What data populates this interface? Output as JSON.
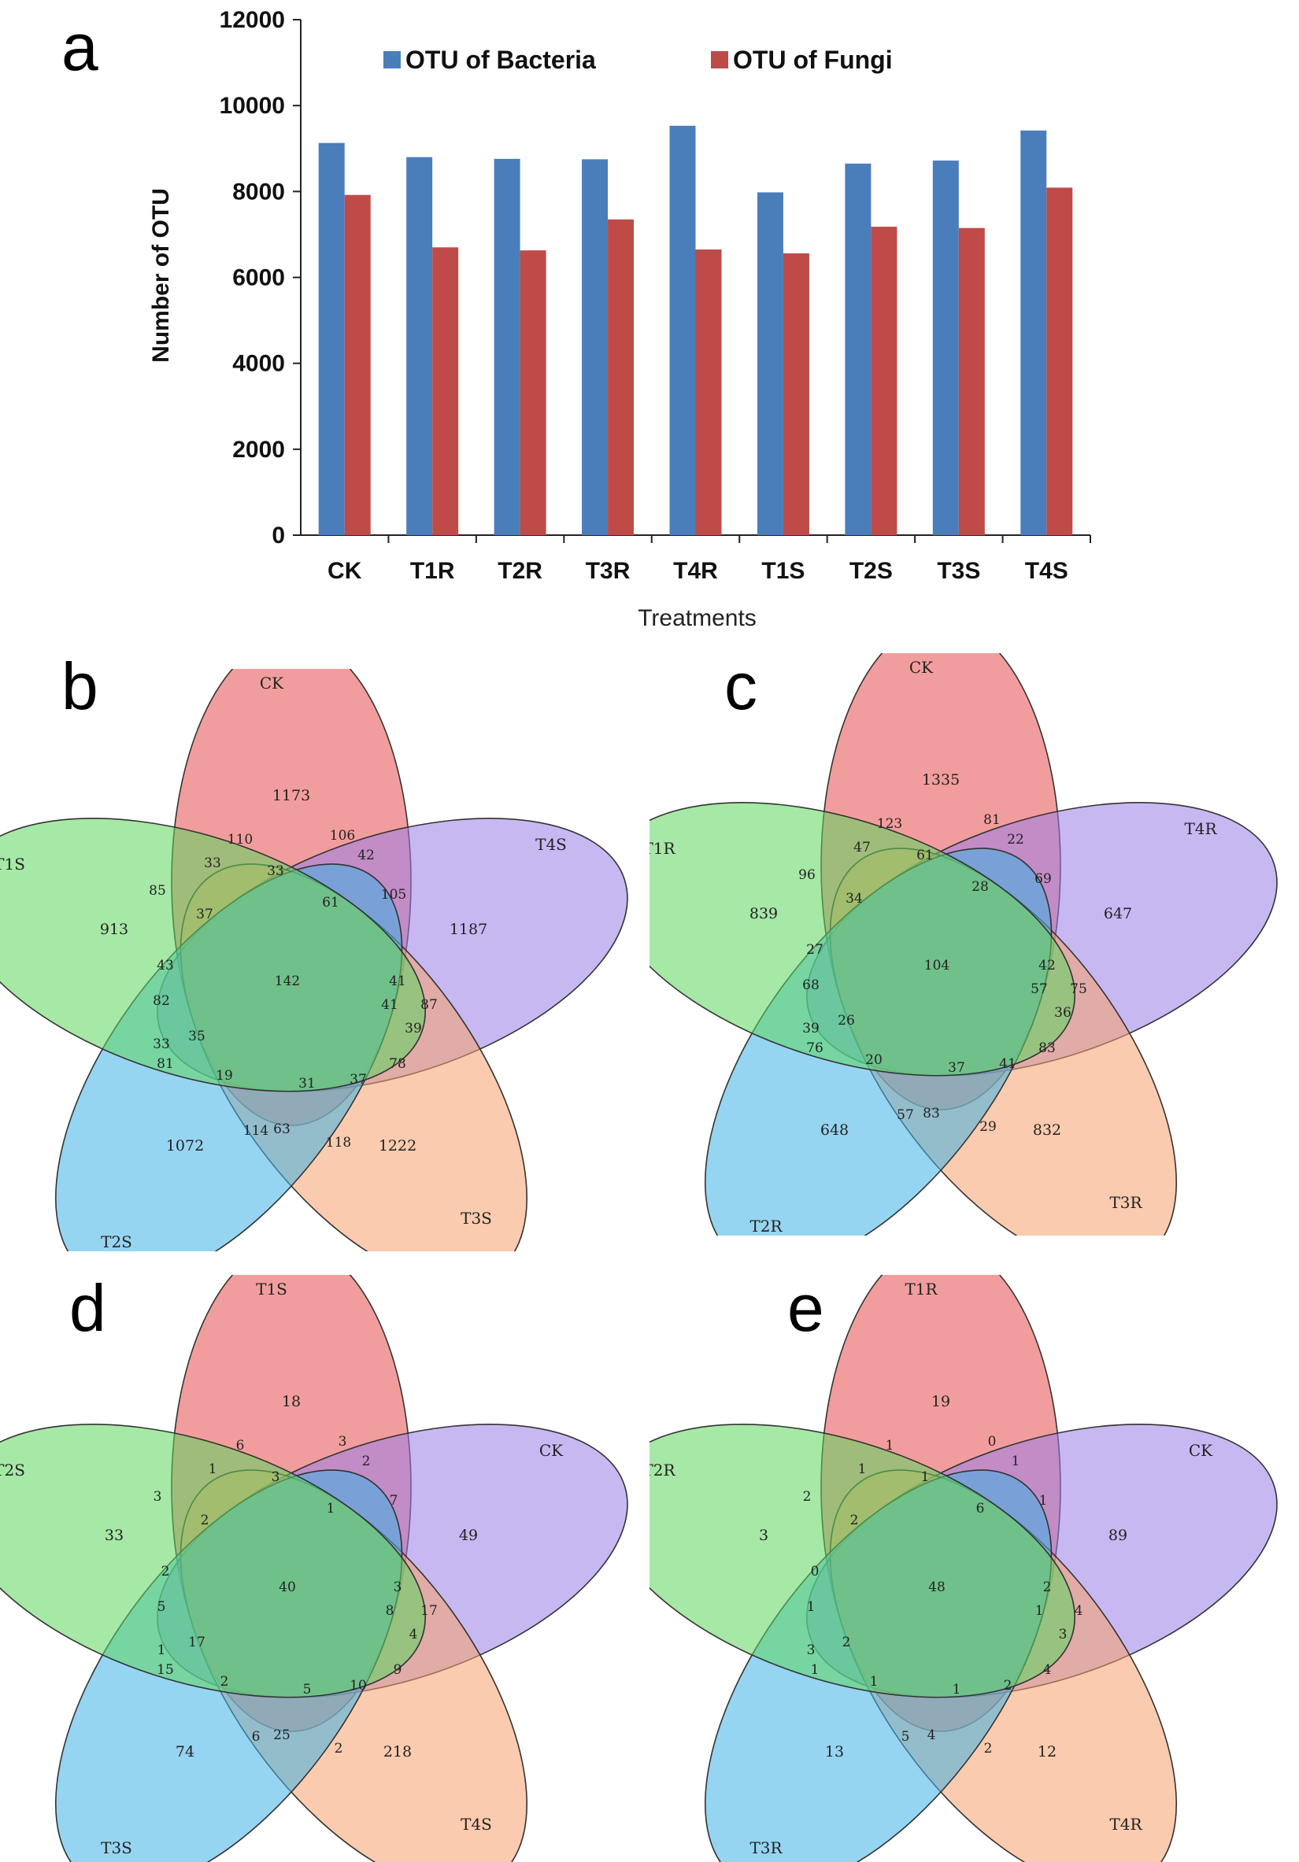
{
  "panels": {
    "a": "a",
    "b": "b",
    "c": "c",
    "d": "d",
    "e": "e"
  },
  "chart_data": [
    {
      "type": "bar",
      "xlabel": "Treatments",
      "ylabel": "Number of OTU",
      "ylim": [
        0,
        12000
      ],
      "yticks": [
        0,
        2000,
        4000,
        6000,
        8000,
        10000,
        12000
      ],
      "categories": [
        "CK",
        "T1R",
        "T2R",
        "T3R",
        "T4R",
        "T1S",
        "T2S",
        "T3S",
        "T4S"
      ],
      "series": [
        {
          "name": "OTU of Bacteria",
          "color": "#4a7ebb",
          "values": [
            9130,
            8800,
            8760,
            8750,
            9530,
            7980,
            8650,
            8720,
            9420
          ]
        },
        {
          "name": "OTU of Fungi",
          "color": "#be4b48",
          "values": [
            7920,
            6700,
            6630,
            7350,
            6650,
            6560,
            7180,
            7150,
            8090
          ]
        }
      ],
      "grid": false,
      "legend": "top"
    },
    {
      "type": "venn",
      "sets": [
        "CK",
        "T4S",
        "T3S",
        "T2S",
        "T1S"
      ],
      "colors": [
        "#e74c4c",
        "#9b7ee8",
        "#f5a16b",
        "#3fb3e6",
        "#5cd65c"
      ],
      "labels": [
        "1173",
        "1187",
        "1222",
        "1072",
        "913",
        "110",
        "33",
        "106",
        "33",
        "42",
        "105",
        "61",
        "41",
        "87",
        "39",
        "41",
        "78",
        "37",
        "31",
        "118",
        "63",
        "114",
        "19",
        "81",
        "33",
        "35",
        "82",
        "43",
        "85",
        "37",
        "142"
      ]
    },
    {
      "type": "venn",
      "sets": [
        "CK",
        "T4R",
        "T3R",
        "T2R",
        "T1R"
      ],
      "colors": [
        "#e74c4c",
        "#9b7ee8",
        "#f5a16b",
        "#3fb3e6",
        "#5cd65c"
      ],
      "labels": [
        "1335",
        "647",
        "832",
        "648",
        "839",
        "123",
        "47",
        "81",
        "61",
        "22",
        "69",
        "28",
        "42",
        "75",
        "36",
        "57",
        "83",
        "41",
        "37",
        "29",
        "83",
        "57",
        "20",
        "76",
        "39",
        "26",
        "68",
        "27",
        "96",
        "34",
        "104"
      ]
    },
    {
      "type": "venn",
      "sets": [
        "T1S",
        "CK",
        "T4S",
        "T3S",
        "T2S"
      ],
      "colors": [
        "#e74c4c",
        "#9b7ee8",
        "#f5a16b",
        "#3fb3e6",
        "#5cd65c"
      ],
      "labels": [
        "18",
        "49",
        "218",
        "74",
        "33",
        "6",
        "1",
        "3",
        "3",
        "2",
        "7",
        "1",
        "3",
        "17",
        "4",
        "8",
        "9",
        "10",
        "5",
        "2",
        "25",
        "6",
        "2",
        "15",
        "1",
        "17",
        "5",
        "2",
        "3",
        "2",
        "40"
      ]
    },
    {
      "type": "venn",
      "sets": [
        "T1R",
        "CK",
        "T4R",
        "T3R",
        "T2R"
      ],
      "colors": [
        "#e74c4c",
        "#9b7ee8",
        "#f5a16b",
        "#3fb3e6",
        "#5cd65c"
      ],
      "labels": [
        "19",
        "89",
        "12",
        "13",
        "3",
        "1",
        "1",
        "0",
        "1",
        "1",
        "1",
        "6",
        "2",
        "4",
        "3",
        "1",
        "4",
        "2",
        "1",
        "2",
        "4",
        "5",
        "1",
        "1",
        "3",
        "2",
        "1",
        "0",
        "2",
        "2",
        "48"
      ]
    }
  ]
}
